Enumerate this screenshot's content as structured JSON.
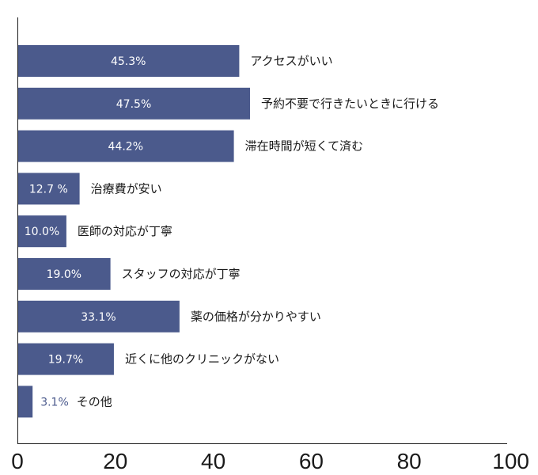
{
  "colors": {
    "bar": "#4b5a8c",
    "value_inside": "#ffffff",
    "value_outside": "#4b5a8c",
    "axis": "#1a1a1a"
  },
  "chart_data": {
    "type": "bar",
    "orientation": "horizontal",
    "title": "",
    "xlabel": "",
    "ylabel": "",
    "xlim": [
      0,
      100
    ],
    "grid": false,
    "legend": "none",
    "x_ticks": [
      0,
      20,
      40,
      60,
      80,
      100
    ],
    "categories": [
      "アクセスがいい",
      "予約不要で行きたいときに行ける",
      "滞在時間が短くて済む",
      "治療費が安い",
      "医師の対応が丁寧",
      "スタッフの対応が丁寧",
      "薬の価格が分かりやすい",
      "近くに他のクリニックがない",
      "その他"
    ],
    "values": [
      45.3,
      47.5,
      44.2,
      12.7,
      10.0,
      19.0,
      33.1,
      19.7,
      3.1
    ],
    "data_labels": [
      "45.3%",
      "47.5%",
      "44.2%",
      "12.7 %",
      "10.0%",
      "19.0%",
      "33.1%",
      "19.7%",
      "3.1%"
    ]
  }
}
